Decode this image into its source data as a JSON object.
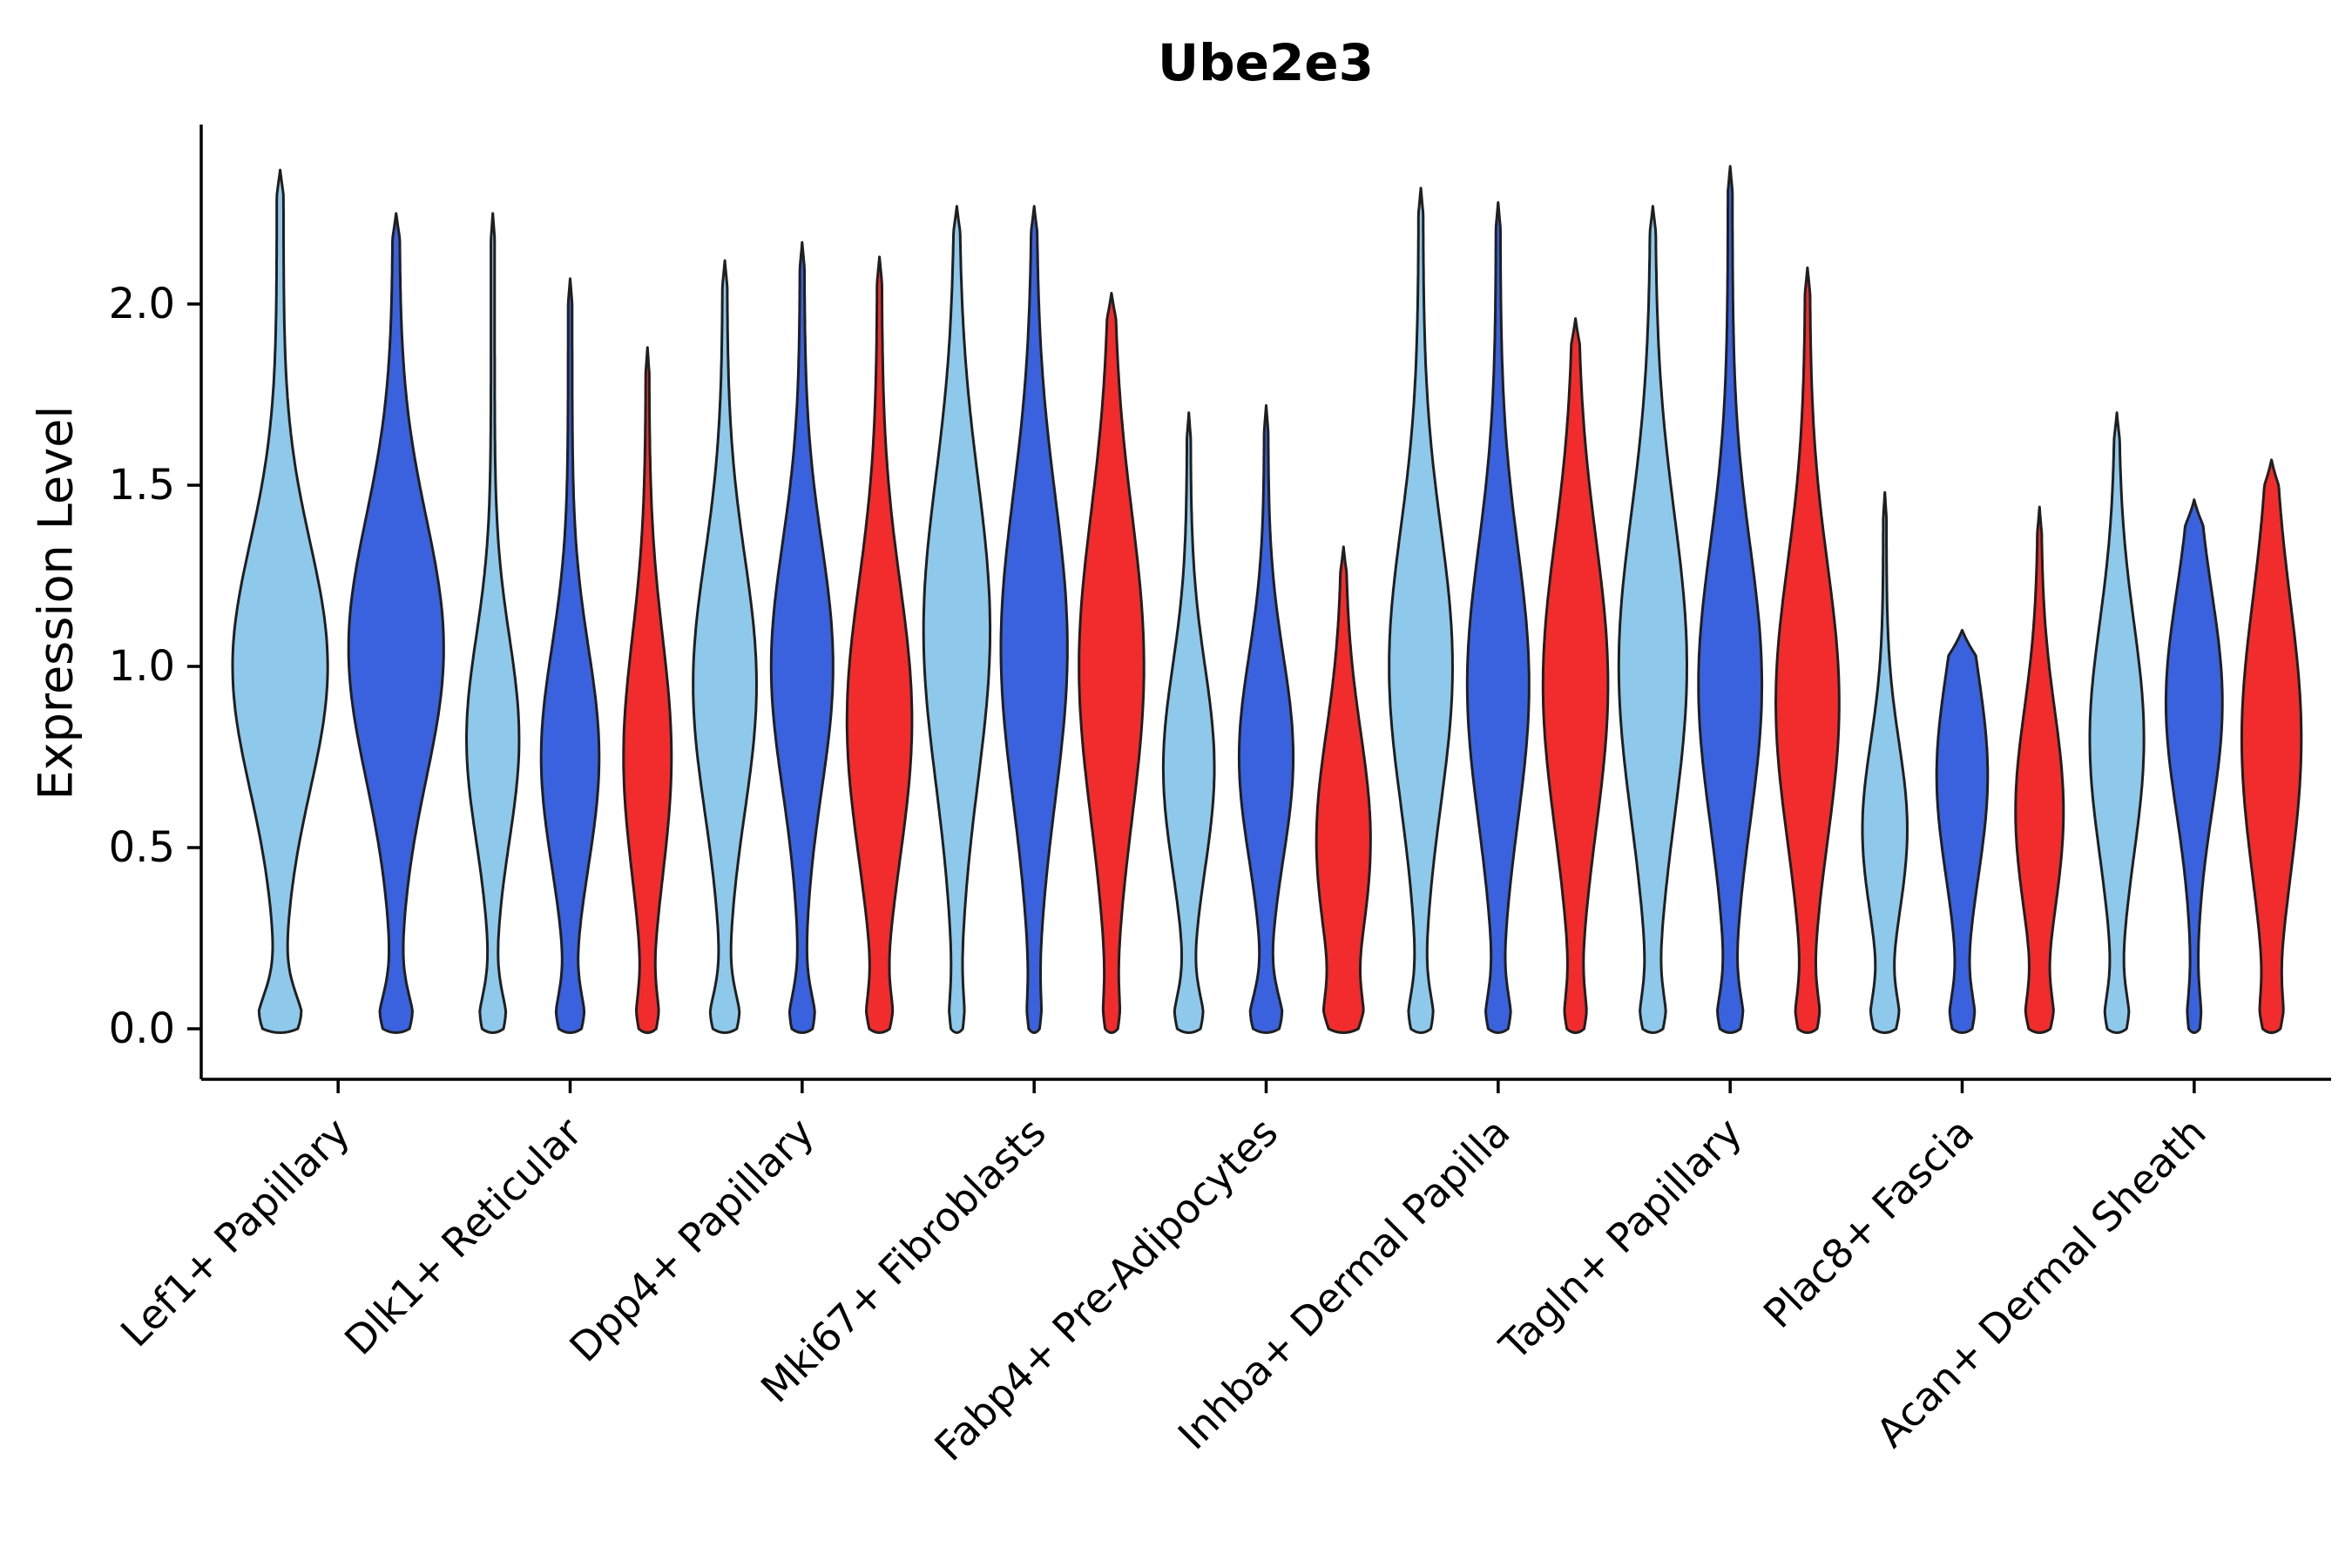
{
  "chart_data": {
    "type": "violin",
    "title": "Ube2e3",
    "ylabel": "Expression Level",
    "yticks": [
      "0.0",
      "0.5",
      "1.0",
      "1.5",
      "2.0"
    ],
    "ylim": [
      -0.14,
      2.48
    ],
    "grid": false,
    "legend": "none",
    "colors": [
      "#8EC9EC",
      "#3A62DE",
      "#F22C2C"
    ],
    "edge_color": "#1f1f1f",
    "categories": [
      {
        "label": "Lef1+ Papillary",
        "violins": [
          {
            "series": 0,
            "top": 2.37,
            "mode": 1.0,
            "sigma": 0.34,
            "zero": 0.45,
            "width": 0.82
          },
          {
            "series": 1,
            "top": 2.25,
            "mode": 1.05,
            "sigma": 0.36,
            "zero": 0.32,
            "width": 0.82
          }
        ]
      },
      {
        "label": "Dlk1+ Reticular",
        "violins": [
          {
            "series": 0,
            "top": 2.25,
            "mode": 0.8,
            "sigma": 0.28,
            "zero": 0.5,
            "width": 0.68
          },
          {
            "series": 1,
            "top": 2.07,
            "mode": 0.75,
            "sigma": 0.3,
            "zero": 0.45,
            "width": 0.75
          },
          {
            "series": 2,
            "top": 1.88,
            "mode": 0.75,
            "sigma": 0.33,
            "zero": 0.38,
            "width": 0.62
          }
        ]
      },
      {
        "label": "Dpp4+ Papillary",
        "violins": [
          {
            "series": 0,
            "top": 2.12,
            "mode": 0.95,
            "sigma": 0.35,
            "zero": 0.45,
            "width": 0.82
          },
          {
            "series": 1,
            "top": 2.17,
            "mode": 1.0,
            "sigma": 0.34,
            "zero": 0.4,
            "width": 0.8
          },
          {
            "series": 2,
            "top": 2.13,
            "mode": 0.85,
            "sigma": 0.38,
            "zero": 0.3,
            "width": 0.84
          }
        ]
      },
      {
        "label": "Mki67+ Fibroblasts",
        "violins": [
          {
            "series": 0,
            "top": 2.27,
            "mode": 1.1,
            "sigma": 0.42,
            "zero": 0.15,
            "width": 0.86
          },
          {
            "series": 1,
            "top": 2.27,
            "mode": 1.05,
            "sigma": 0.42,
            "zero": 0.12,
            "width": 0.86
          },
          {
            "series": 2,
            "top": 2.03,
            "mode": 1.0,
            "sigma": 0.42,
            "zero": 0.15,
            "width": 0.84
          }
        ]
      },
      {
        "label": "Fabp4+ Pre-Adipocytes",
        "violins": [
          {
            "series": 0,
            "top": 1.7,
            "mode": 0.72,
            "sigma": 0.28,
            "zero": 0.55,
            "width": 0.66
          },
          {
            "series": 1,
            "top": 1.72,
            "mode": 0.75,
            "sigma": 0.28,
            "zero": 0.6,
            "width": 0.7
          },
          {
            "series": 2,
            "top": 1.33,
            "mode": 0.52,
            "sigma": 0.3,
            "zero": 0.5,
            "width": 0.7
          }
        ]
      },
      {
        "label": "Inhba+ Dermal Papilla",
        "violins": [
          {
            "series": 0,
            "top": 2.32,
            "mode": 1.0,
            "sigma": 0.38,
            "zero": 0.35,
            "width": 0.82
          },
          {
            "series": 1,
            "top": 2.28,
            "mode": 0.95,
            "sigma": 0.38,
            "zero": 0.35,
            "width": 0.8
          },
          {
            "series": 2,
            "top": 1.96,
            "mode": 0.95,
            "sigma": 0.4,
            "zero": 0.25,
            "width": 0.84
          }
        ]
      },
      {
        "label": "Tagln+ Papillary",
        "violins": [
          {
            "series": 0,
            "top": 2.27,
            "mode": 1.0,
            "sigma": 0.42,
            "zero": 0.3,
            "width": 0.88
          },
          {
            "series": 1,
            "top": 2.38,
            "mode": 0.95,
            "sigma": 0.38,
            "zero": 0.35,
            "width": 0.82
          },
          {
            "series": 2,
            "top": 2.1,
            "mode": 0.9,
            "sigma": 0.38,
            "zero": 0.3,
            "width": 0.82
          }
        ]
      },
      {
        "label": "Plac8+ Fascia",
        "violins": [
          {
            "series": 0,
            "top": 1.48,
            "mode": 0.55,
            "sigma": 0.24,
            "zero": 0.58,
            "width": 0.58
          },
          {
            "series": 1,
            "top": 1.1,
            "mode": 0.7,
            "sigma": 0.28,
            "zero": 0.45,
            "width": 0.66
          },
          {
            "series": 2,
            "top": 1.44,
            "mode": 0.6,
            "sigma": 0.28,
            "zero": 0.48,
            "width": 0.62
          }
        ]
      },
      {
        "label": "Acan+ Dermal Sheath",
        "violins": [
          {
            "series": 0,
            "top": 1.7,
            "mode": 0.8,
            "sigma": 0.32,
            "zero": 0.4,
            "width": 0.7
          },
          {
            "series": 1,
            "top": 1.46,
            "mode": 0.9,
            "sigma": 0.3,
            "zero": 0.2,
            "width": 0.73
          },
          {
            "series": 2,
            "top": 1.57,
            "mode": 0.8,
            "sigma": 0.38,
            "zero": 0.25,
            "width": 0.77
          }
        ]
      }
    ]
  }
}
